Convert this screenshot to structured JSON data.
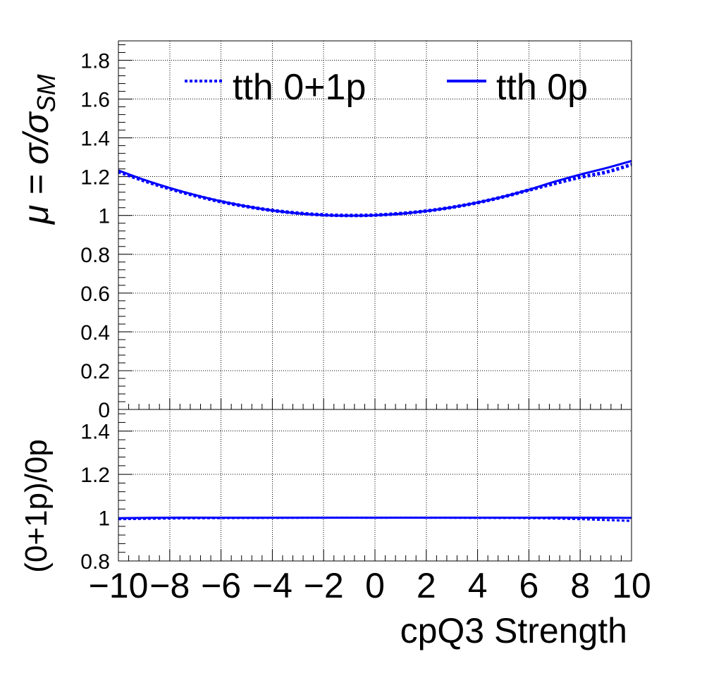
{
  "chart_data": [
    {
      "type": "line",
      "panel": "main",
      "ylabel": "μ = σ/σ",
      "ylabel_subscript": "SM",
      "xlim": [
        -10,
        10
      ],
      "ylim": [
        0,
        1.9
      ],
      "y_ticks": [
        0,
        0.2,
        0.4,
        0.6,
        0.8,
        1,
        1.2,
        1.4,
        1.6,
        1.8
      ],
      "y_tick_labels": [
        "0",
        "0.2",
        "0.4",
        "0.6",
        "0.8",
        "1",
        "1.2",
        "1.4",
        "1.6",
        "1.8"
      ],
      "grid": true,
      "legend_position": "top",
      "x": [
        -10,
        -9,
        -8,
        -7,
        -6,
        -5,
        -4,
        -3,
        -2,
        -1,
        0,
        1,
        2,
        3,
        4,
        5,
        6,
        7,
        8,
        9,
        10
      ],
      "series": [
        {
          "name": "tth 0+1p",
          "style": "dotted",
          "color": "#0000ff",
          "values": [
            1.226,
            1.179,
            1.138,
            1.102,
            1.071,
            1.046,
            1.026,
            1.012,
            1.003,
            1.0,
            1.002,
            1.01,
            1.023,
            1.042,
            1.066,
            1.096,
            1.131,
            1.165,
            1.197,
            1.223,
            1.262
          ]
        },
        {
          "name": "tth 0p",
          "style": "solid",
          "color": "#0000ff",
          "values": [
            1.232,
            1.184,
            1.142,
            1.105,
            1.073,
            1.047,
            1.026,
            1.011,
            1.002,
            0.999,
            1.001,
            1.009,
            1.023,
            1.042,
            1.067,
            1.097,
            1.133,
            1.174,
            1.211,
            1.244,
            1.281
          ]
        }
      ]
    },
    {
      "type": "line",
      "panel": "ratio",
      "xlabel": "cpQ3 Strength",
      "ylabel": "(0+1p)/0p",
      "xlim": [
        -10,
        10
      ],
      "ylim": [
        0.8,
        1.5
      ],
      "x_ticks": [
        -10,
        -8,
        -6,
        -4,
        -2,
        0,
        2,
        4,
        6,
        8,
        10
      ],
      "x_tick_labels": [
        "−10",
        "−8",
        "−6",
        "−4",
        "−2",
        "0",
        "2",
        "4",
        "6",
        "8",
        "10"
      ],
      "y_ticks": [
        0.8,
        1,
        1.2,
        1.4
      ],
      "y_tick_labels": [
        "0.8",
        "1",
        "1.2",
        "1.4"
      ],
      "grid": true,
      "x": [
        -10,
        -8,
        -6,
        -4,
        -2,
        0,
        2,
        4,
        6,
        8,
        10
      ],
      "series": [
        {
          "style": "dotted",
          "color": "#0000ff",
          "values": [
            0.993,
            0.996,
            0.998,
            0.999,
            1.0,
            1.0,
            1.0,
            0.999,
            0.998,
            0.993,
            0.985
          ]
        },
        {
          "style": "solid",
          "color": "#0000ff",
          "values": [
            0.998,
            1.0,
            1.0,
            1.0,
            1.0,
            1.0,
            1.0,
            1.0,
            1.0,
            1.0,
            0.999
          ]
        }
      ]
    }
  ]
}
